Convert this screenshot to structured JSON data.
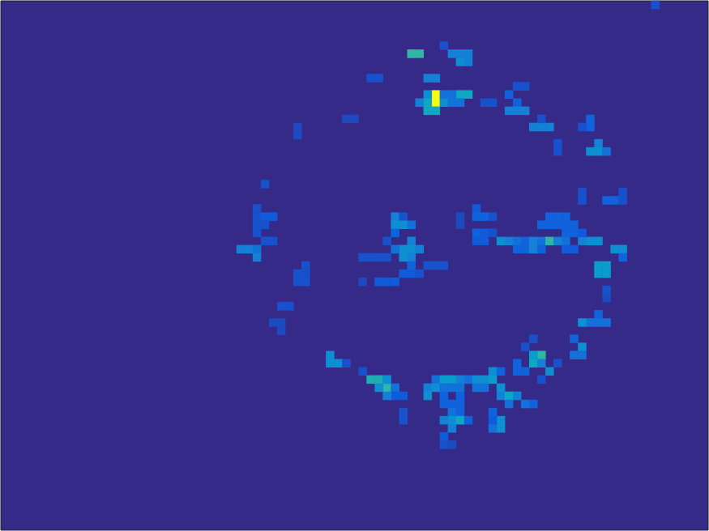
{
  "chart_data": {
    "type": "heatmap",
    "tick_labels": false,
    "grid": false,
    "xlim": [
      0,
      87
    ],
    "ylim": [
      0,
      65
    ],
    "color_range": [
      0,
      1
    ],
    "cells": [
      [
        50,
        6,
        0.5
      ],
      [
        51,
        6,
        0.5
      ],
      [
        54,
        5,
        0.1
      ],
      [
        55,
        6,
        0.25
      ],
      [
        56,
        6,
        0.25
      ],
      [
        57,
        6,
        0.25
      ],
      [
        56,
        7,
        0.3
      ],
      [
        57,
        7,
        0.25
      ],
      [
        52,
        9,
        0.25
      ],
      [
        53,
        9,
        0.25
      ],
      [
        45,
        9,
        0.1
      ],
      [
        46,
        9,
        0.1
      ],
      [
        53,
        11,
        1.0
      ],
      [
        53,
        12,
        1.0
      ],
      [
        52,
        11,
        0.3
      ],
      [
        52,
        12,
        0.4
      ],
      [
        51,
        12,
        0.25
      ],
      [
        54,
        12,
        0.3
      ],
      [
        53,
        13,
        0.4
      ],
      [
        52,
        13,
        0.4
      ],
      [
        54,
        11,
        0.2
      ],
      [
        55,
        12,
        0.2
      ],
      [
        56,
        11,
        0.4
      ],
      [
        57,
        11,
        0.4
      ],
      [
        55,
        11,
        0.2
      ],
      [
        56,
        12,
        0.2
      ],
      [
        59,
        12,
        0.1
      ],
      [
        60,
        12,
        0.1
      ],
      [
        63,
        10,
        0.1
      ],
      [
        64,
        10,
        0.1
      ],
      [
        62,
        11,
        0.15
      ],
      [
        63,
        12,
        0.15
      ],
      [
        62,
        13,
        0.25
      ],
      [
        63,
        13,
        0.25
      ],
      [
        64,
        13,
        0.25
      ],
      [
        65,
        15,
        0.25
      ],
      [
        66,
        15,
        0.25
      ],
      [
        67,
        15,
        0.25
      ],
      [
        66,
        14,
        0.1
      ],
      [
        68,
        17,
        0.1
      ],
      [
        68,
        18,
        0.1
      ],
      [
        72,
        14,
        0.15
      ],
      [
        72,
        15,
        0.15
      ],
      [
        71,
        15,
        0.1
      ],
      [
        73,
        17,
        0.25
      ],
      [
        72,
        18,
        0.3
      ],
      [
        73,
        18,
        0.3
      ],
      [
        74,
        18,
        0.2
      ],
      [
        42,
        14,
        0.08
      ],
      [
        43,
        14,
        0.08
      ],
      [
        36,
        15,
        0.08
      ],
      [
        36,
        16,
        0.08
      ],
      [
        32,
        22,
        0.1
      ],
      [
        31,
        25,
        0.1
      ],
      [
        31,
        26,
        0.1
      ],
      [
        31,
        27,
        0.1
      ],
      [
        31,
        28,
        0.1
      ],
      [
        32,
        26,
        0.12
      ],
      [
        33,
        26,
        0.12
      ],
      [
        32,
        27,
        0.1
      ],
      [
        32,
        29,
        0.1
      ],
      [
        33,
        29,
        0.1
      ],
      [
        29,
        30,
        0.25
      ],
      [
        30,
        30,
        0.25
      ],
      [
        31,
        30,
        0.2
      ],
      [
        31,
        31,
        0.25
      ],
      [
        37,
        32,
        0.1
      ],
      [
        37,
        33,
        0.1
      ],
      [
        37,
        34,
        0.1
      ],
      [
        36,
        33,
        0.1
      ],
      [
        36,
        34,
        0.1
      ],
      [
        48,
        26,
        0.25
      ],
      [
        49,
        26,
        0.1
      ],
      [
        48,
        27,
        0.3
      ],
      [
        49,
        27,
        0.3
      ],
      [
        50,
        27,
        0.2
      ],
      [
        48,
        28,
        0.15
      ],
      [
        50,
        29,
        0.25
      ],
      [
        49,
        30,
        0.3
      ],
      [
        50,
        30,
        0.3
      ],
      [
        51,
        30,
        0.25
      ],
      [
        50,
        31,
        0.25
      ],
      [
        49,
        31,
        0.3
      ],
      [
        48,
        30,
        0.2
      ],
      [
        44,
        31,
        0.1
      ],
      [
        45,
        31,
        0.1
      ],
      [
        46,
        31,
        0.1
      ],
      [
        47,
        31,
        0.1
      ],
      [
        47,
        29,
        0.1
      ],
      [
        46,
        34,
        0.12
      ],
      [
        47,
        34,
        0.12
      ],
      [
        48,
        34,
        0.12
      ],
      [
        49,
        33,
        0.12
      ],
      [
        50,
        33,
        0.12
      ],
      [
        50,
        32,
        0.15
      ],
      [
        51,
        33,
        0.1
      ],
      [
        52,
        32,
        0.1
      ],
      [
        53,
        32,
        0.1
      ],
      [
        54,
        32,
        0.1
      ],
      [
        44,
        34,
        0.08
      ],
      [
        56,
        26,
        0.08
      ],
      [
        56,
        27,
        0.08
      ],
      [
        58,
        25,
        0.12
      ],
      [
        58,
        26,
        0.15
      ],
      [
        59,
        26,
        0.15
      ],
      [
        60,
        26,
        0.1
      ],
      [
        58,
        28,
        0.15
      ],
      [
        59,
        28,
        0.12
      ],
      [
        58,
        29,
        0.12
      ],
      [
        59,
        29,
        0.12
      ],
      [
        60,
        28,
        0.1
      ],
      [
        61,
        29,
        0.3
      ],
      [
        62,
        29,
        0.25
      ],
      [
        63,
        29,
        0.2
      ],
      [
        64,
        29,
        0.15
      ],
      [
        65,
        29,
        0.25
      ],
      [
        66,
        29,
        0.2
      ],
      [
        67,
        29,
        0.5
      ],
      [
        68,
        29,
        0.25
      ],
      [
        69,
        29,
        0.2
      ],
      [
        71,
        29,
        0.25
      ],
      [
        72,
        29,
        0.3
      ],
      [
        73,
        29,
        0.3
      ],
      [
        66,
        27,
        0.15
      ],
      [
        67,
        27,
        0.15
      ],
      [
        68,
        27,
        0.15
      ],
      [
        69,
        27,
        0.15
      ],
      [
        70,
        27,
        0.15
      ],
      [
        67,
        26,
        0.15
      ],
      [
        68,
        26,
        0.15
      ],
      [
        69,
        26,
        0.15
      ],
      [
        69,
        28,
        0.15
      ],
      [
        70,
        28,
        0.15
      ],
      [
        71,
        28,
        0.12
      ],
      [
        63,
        30,
        0.15
      ],
      [
        64,
        30,
        0.15
      ],
      [
        65,
        30,
        0.25
      ],
      [
        66,
        30,
        0.15
      ],
      [
        69,
        30,
        0.12
      ],
      [
        70,
        30,
        0.12
      ],
      [
        75,
        30,
        0.3
      ],
      [
        76,
        30,
        0.3
      ],
      [
        71,
        23,
        0.1
      ],
      [
        71,
        24,
        0.1
      ],
      [
        74,
        24,
        0.15
      ],
      [
        75,
        24,
        0.15
      ],
      [
        76,
        23,
        0.1
      ],
      [
        76,
        24,
        0.1
      ],
      [
        73,
        32,
        0.35
      ],
      [
        74,
        32,
        0.35
      ],
      [
        73,
        33,
        0.35
      ],
      [
        74,
        33,
        0.35
      ],
      [
        76,
        31,
        0.15
      ],
      [
        74,
        35,
        0.1
      ],
      [
        74,
        36,
        0.08
      ],
      [
        73,
        38,
        0.15
      ],
      [
        72,
        39,
        0.2
      ],
      [
        73,
        39,
        0.2
      ],
      [
        74,
        39,
        0.2
      ],
      [
        71,
        39,
        0.3
      ],
      [
        70,
        41,
        0.15
      ],
      [
        71,
        42,
        0.3
      ],
      [
        70,
        43,
        0.2
      ],
      [
        71,
        43,
        0.2
      ],
      [
        34,
        37,
        0.1
      ],
      [
        35,
        37,
        0.1
      ],
      [
        33,
        39,
        0.08
      ],
      [
        34,
        39,
        0.08
      ],
      [
        34,
        40,
        0.08
      ],
      [
        40,
        43,
        0.3
      ],
      [
        40,
        44,
        0.3
      ],
      [
        41,
        44,
        0.3
      ],
      [
        42,
        44,
        0.1
      ],
      [
        44,
        45,
        0.1
      ],
      [
        45,
        46,
        0.45
      ],
      [
        46,
        46,
        0.45
      ],
      [
        47,
        47,
        0.5
      ],
      [
        46,
        47,
        0.3
      ],
      [
        47,
        46,
        0.3
      ],
      [
        48,
        47,
        0.2
      ],
      [
        48,
        48,
        0.12
      ],
      [
        49,
        48,
        0.12
      ],
      [
        47,
        48,
        0.25
      ],
      [
        49,
        50,
        0.1
      ],
      [
        49,
        51,
        0.1
      ],
      [
        53,
        46,
        0.2
      ],
      [
        54,
        46,
        0.35
      ],
      [
        55,
        46,
        0.35
      ],
      [
        56,
        46,
        0.25
      ],
      [
        57,
        46,
        0.2
      ],
      [
        58,
        46,
        0.3
      ],
      [
        59,
        46,
        0.3
      ],
      [
        60,
        46,
        0.35
      ],
      [
        52,
        47,
        0.25
      ],
      [
        53,
        47,
        0.3
      ],
      [
        54,
        47,
        0.2
      ],
      [
        55,
        47,
        0.2
      ],
      [
        56,
        47,
        0.2
      ],
      [
        58,
        47,
        0.2
      ],
      [
        59,
        47,
        0.2
      ],
      [
        61,
        47,
        0.3
      ],
      [
        52,
        48,
        0.3
      ],
      [
        54,
        48,
        0.15
      ],
      [
        56,
        48,
        0.15
      ],
      [
        61,
        48,
        0.25
      ],
      [
        62,
        48,
        0.4
      ],
      [
        63,
        48,
        0.25
      ],
      [
        55,
        49,
        0.15
      ],
      [
        56,
        49,
        0.15
      ],
      [
        62,
        49,
        0.2
      ],
      [
        64,
        49,
        0.2
      ],
      [
        65,
        49,
        0.15
      ],
      [
        60,
        45,
        0.3
      ],
      [
        61,
        45,
        0.15
      ],
      [
        63,
        45,
        0.15
      ],
      [
        54,
        49,
        0.15
      ],
      [
        55,
        50,
        0.2
      ],
      [
        56,
        50,
        0.15
      ],
      [
        55,
        51,
        0.3
      ],
      [
        56,
        51,
        0.4
      ],
      [
        54,
        51,
        0.25
      ],
      [
        55,
        52,
        0.25
      ],
      [
        57,
        51,
        0.15
      ],
      [
        54,
        53,
        0.12
      ],
      [
        54,
        54,
        0.1
      ],
      [
        55,
        54,
        0.08
      ],
      [
        60,
        50,
        0.15
      ],
      [
        61,
        51,
        0.3
      ],
      [
        61,
        52,
        0.3
      ],
      [
        60,
        52,
        0.2
      ],
      [
        60,
        51,
        0.12
      ],
      [
        63,
        44,
        0.15
      ],
      [
        64,
        45,
        0.15
      ],
      [
        65,
        44,
        0.4
      ],
      [
        66,
        43,
        0.5
      ],
      [
        65,
        43,
        0.35
      ],
      [
        66,
        44,
        0.25
      ],
      [
        67,
        45,
        0.3
      ],
      [
        66,
        46,
        0.1
      ],
      [
        68,
        44,
        0.1
      ],
      [
        64,
        42,
        0.1
      ],
      [
        65,
        41,
        0.1
      ],
      [
        80,
        0,
        0.1
      ]
    ]
  }
}
